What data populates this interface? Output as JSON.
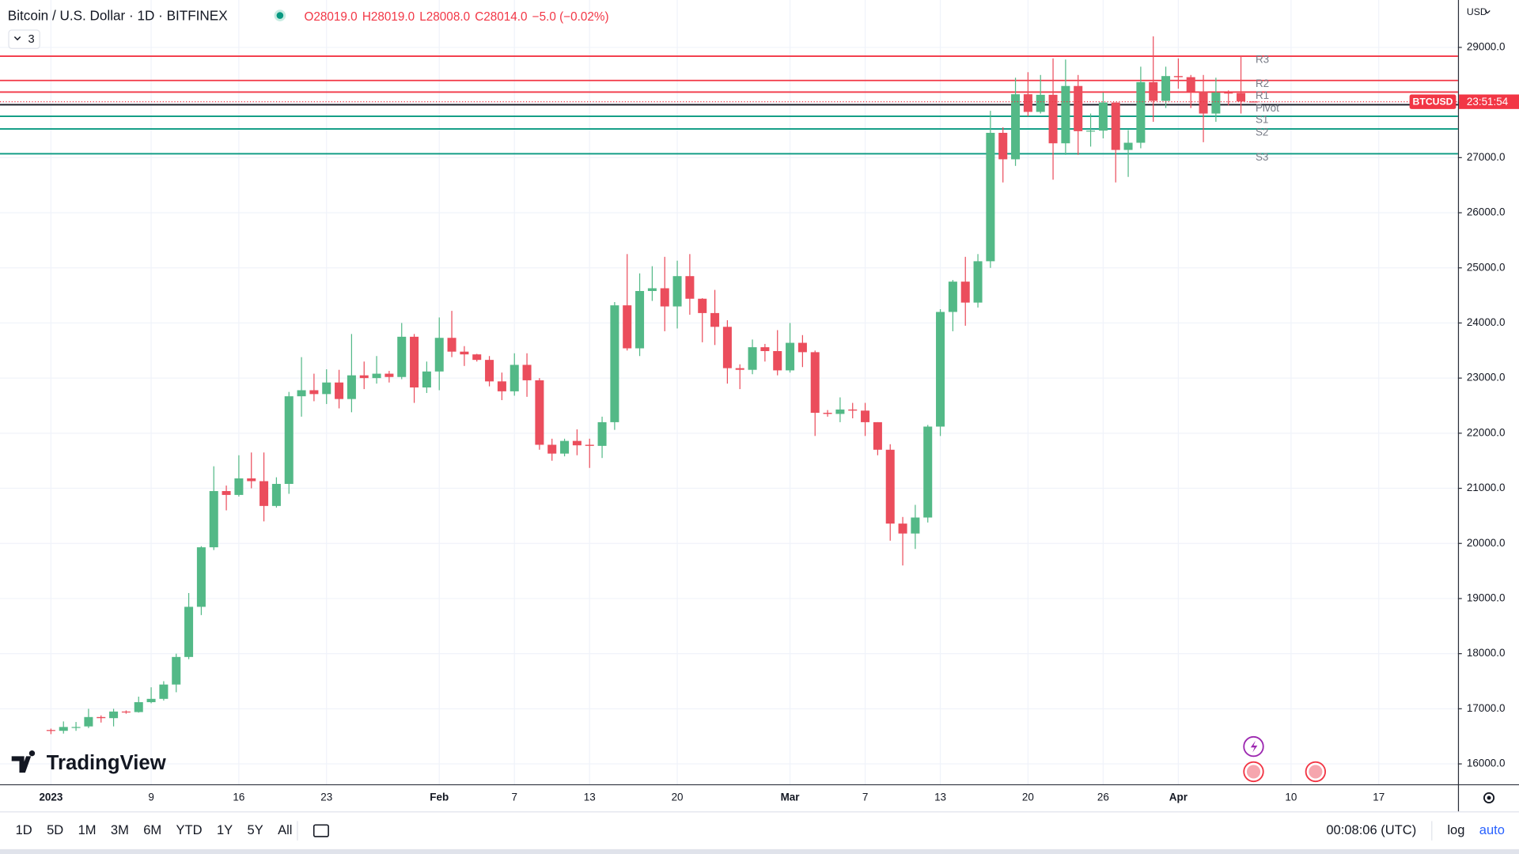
{
  "header": {
    "title": "Bitcoin / U.S. Dollar · 1D · BITFINEX",
    "ohlc": [
      "O28019.0",
      "H28019.0",
      "L28008.0",
      "C28014.0",
      "−5.0 (−0.02%)"
    ],
    "indicators": "3"
  },
  "logo": "TradingView",
  "chart_data": {
    "type": "candlestick",
    "currency": "USD",
    "up_color": "#53b987",
    "down_color": "#eb4d5c",
    "x": [
      "2023-01-01",
      "2023-01-02",
      "2023-01-03",
      "2023-01-04",
      "2023-01-05",
      "2023-01-06",
      "2023-01-07",
      "2023-01-08",
      "2023-01-09",
      "2023-01-10",
      "2023-01-11",
      "2023-01-12",
      "2023-01-13",
      "2023-01-14",
      "2023-01-15",
      "2023-01-16",
      "2023-01-17",
      "2023-01-18",
      "2023-01-19",
      "2023-01-20",
      "2023-01-21",
      "2023-01-22",
      "2023-01-23",
      "2023-01-24",
      "2023-01-25",
      "2023-01-26",
      "2023-01-27",
      "2023-01-28",
      "2023-01-29",
      "2023-01-30",
      "2023-01-31",
      "2023-02-01",
      "2023-02-02",
      "2023-02-03",
      "2023-02-04",
      "2023-02-05",
      "2023-02-06",
      "2023-02-07",
      "2023-02-08",
      "2023-02-09",
      "2023-02-10",
      "2023-02-11",
      "2023-02-12",
      "2023-02-13",
      "2023-02-14",
      "2023-02-15",
      "2023-02-16",
      "2023-02-17",
      "2023-02-18",
      "2023-02-19",
      "2023-02-20",
      "2023-02-21",
      "2023-02-22",
      "2023-02-23",
      "2023-02-24",
      "2023-02-25",
      "2023-02-26",
      "2023-02-27",
      "2023-02-28",
      "2023-03-01",
      "2023-03-02",
      "2023-03-03",
      "2023-03-04",
      "2023-03-05",
      "2023-03-06",
      "2023-03-07",
      "2023-03-08",
      "2023-03-09",
      "2023-03-10",
      "2023-03-11",
      "2023-03-12",
      "2023-03-13",
      "2023-03-14",
      "2023-03-15",
      "2023-03-16",
      "2023-03-17",
      "2023-03-18",
      "2023-03-19",
      "2023-03-20",
      "2023-03-21",
      "2023-03-22",
      "2023-03-23",
      "2023-03-24",
      "2023-03-25",
      "2023-03-26",
      "2023-03-27",
      "2023-03-28",
      "2023-03-29",
      "2023-03-30",
      "2023-03-31",
      "2023-04-01",
      "2023-04-02",
      "2023-04-03",
      "2023-04-04",
      "2023-04-05",
      "2023-04-06",
      "2023-04-07"
    ],
    "open": [
      16615,
      16600,
      16670,
      16680,
      16850,
      16830,
      16950,
      16940,
      17120,
      17180,
      17440,
      17940,
      18850,
      19930,
      20950,
      20880,
      21180,
      21130,
      20680,
      21080,
      22670,
      22780,
      22710,
      22920,
      22620,
      23050,
      23000,
      23080,
      23020,
      23750,
      22830,
      23120,
      23730,
      23480,
      23430,
      23330,
      22940,
      22760,
      23240,
      22960,
      21790,
      21630,
      21860,
      21790,
      21770,
      22200,
      24320,
      23540,
      24580,
      24630,
      24300,
      24850,
      24440,
      24180,
      23930,
      23180,
      23150,
      23560,
      23490,
      23140,
      23640,
      23470,
      22370,
      22350,
      22430,
      22410,
      22200,
      21700,
      20360,
      20180,
      20470,
      22120,
      24200,
      24750,
      24370,
      25120,
      27450,
      26970,
      28150,
      27830,
      28140,
      27260,
      28300,
      27480,
      27490,
      28000,
      27140,
      27270,
      28370,
      28030,
      28480,
      28460,
      28200,
      27800,
      28180,
      28170,
      28019
    ],
    "high": [
      16640,
      16770,
      16760,
      17000,
      16880,
      17000,
      16970,
      17220,
      17390,
      17500,
      18000,
      19100,
      19950,
      21400,
      21050,
      21600,
      21650,
      21650,
      21200,
      22750,
      23380,
      23080,
      23160,
      23150,
      23800,
      23300,
      23400,
      23130,
      24000,
      23800,
      23300,
      24100,
      24220,
      23580,
      23440,
      23400,
      23100,
      23450,
      23450,
      23000,
      21900,
      21900,
      22070,
      21900,
      22300,
      24380,
      25250,
      24900,
      25030,
      25200,
      25130,
      25250,
      24450,
      24600,
      24050,
      23250,
      23700,
      23620,
      23870,
      24000,
      23780,
      23500,
      22420,
      22650,
      22550,
      22550,
      22200,
      21800,
      20480,
      20700,
      22150,
      24250,
      24780,
      25200,
      25250,
      27850,
      27550,
      28450,
      28550,
      28500,
      28800,
      28780,
      28500,
      27800,
      28180,
      28000,
      27500,
      28650,
      29200,
      28650,
      28800,
      28500,
      28500,
      28450,
      28220,
      28850,
      28019
    ],
    "low": [
      16540,
      16550,
      16600,
      16650,
      16750,
      16680,
      16910,
      16930,
      17100,
      17150,
      17300,
      17900,
      18700,
      19880,
      20600,
      20850,
      21000,
      20400,
      20650,
      20900,
      22300,
      22580,
      22530,
      22450,
      22380,
      22800,
      22900,
      22920,
      22980,
      22550,
      22730,
      22780,
      23380,
      23220,
      23300,
      22850,
      22600,
      22680,
      22660,
      21700,
      21500,
      21580,
      21600,
      21370,
      21550,
      22060,
      23500,
      23400,
      24400,
      23850,
      23900,
      24150,
      23650,
      23600,
      22900,
      22800,
      23070,
      23300,
      23050,
      23100,
      23200,
      21950,
      22300,
      22200,
      22270,
      21950,
      21600,
      20050,
      19600,
      19900,
      20380,
      21950,
      23850,
      23950,
      24280,
      25000,
      26550,
      26850,
      27750,
      27800,
      26600,
      27050,
      27050,
      27200,
      27350,
      26550,
      26650,
      27170,
      27650,
      27900,
      28250,
      27900,
      27280,
      27650,
      27950,
      27800,
      28008
    ],
    "close": [
      16600,
      16670,
      16670,
      16850,
      16830,
      16950,
      16940,
      17120,
      17180,
      17440,
      17940,
      18850,
      19930,
      20950,
      20880,
      21180,
      21130,
      20680,
      21080,
      22670,
      22780,
      22710,
      22920,
      22620,
      23050,
      23000,
      23080,
      23020,
      23750,
      22830,
      23120,
      23730,
      23480,
      23430,
      23330,
      22940,
      22760,
      23240,
      22960,
      21790,
      21630,
      21860,
      21780,
      21770,
      22200,
      24320,
      23540,
      24580,
      24630,
      24300,
      24850,
      24440,
      24180,
      23930,
      23180,
      23150,
      23560,
      23490,
      23140,
      23640,
      23470,
      22370,
      22350,
      22430,
      22410,
      22200,
      21700,
      20360,
      20180,
      20470,
      22120,
      24200,
      24750,
      24370,
      25120,
      27450,
      26970,
      28150,
      27830,
      28140,
      27260,
      28300,
      27480,
      27490,
      28000,
      27140,
      27270,
      28370,
      28030,
      28480,
      28460,
      28200,
      27800,
      28180,
      28170,
      28019,
      28014
    ],
    "xlim": [
      "2023-01-01",
      "2023-04-23"
    ],
    "xticks": [
      {
        "value": "2023-01-01",
        "label": "2023"
      },
      {
        "value": "2023-01-09",
        "label": "9"
      },
      {
        "value": "2023-01-16",
        "label": "16"
      },
      {
        "value": "2023-01-23",
        "label": "23"
      },
      {
        "value": "2023-02-01",
        "label": "Feb"
      },
      {
        "value": "2023-02-07",
        "label": "7"
      },
      {
        "value": "2023-02-13",
        "label": "13"
      },
      {
        "value": "2023-02-20",
        "label": "20"
      },
      {
        "value": "2023-03-01",
        "label": "Mar"
      },
      {
        "value": "2023-03-07",
        "label": "7"
      },
      {
        "value": "2023-03-13",
        "label": "13"
      },
      {
        "value": "2023-03-20",
        "label": "20"
      },
      {
        "value": "2023-03-26",
        "label": "26"
      },
      {
        "value": "2023-04-01",
        "label": "Apr"
      },
      {
        "value": "2023-04-10",
        "label": "10"
      },
      {
        "value": "2023-04-17",
        "label": "17"
      }
    ],
    "ylim": [
      15630,
      29860
    ],
    "yticks": [
      {
        "value": 16000,
        "label": "16000.0"
      },
      {
        "value": 17000,
        "label": "17000.0"
      },
      {
        "value": 18000,
        "label": "18000.0"
      },
      {
        "value": 19000,
        "label": "19000.0"
      },
      {
        "value": 20000,
        "label": "20000.0"
      },
      {
        "value": 21000,
        "label": "21000.0"
      },
      {
        "value": 22000,
        "label": "22000.0"
      },
      {
        "value": 23000,
        "label": "23000.0"
      },
      {
        "value": 24000,
        "label": "24000.0"
      },
      {
        "value": 25000,
        "label": "25000.0"
      },
      {
        "value": 26000,
        "label": "26000.0"
      },
      {
        "value": 27000,
        "label": "27000.0"
      },
      {
        "value": 28000,
        "label": "28000.0"
      },
      {
        "value": 29000,
        "label": "29000.0"
      }
    ],
    "grid": true,
    "pivots": [
      {
        "name": "R3",
        "value": 28840,
        "color": "#f23645"
      },
      {
        "name": "R2",
        "value": 28400,
        "color": "#f23645"
      },
      {
        "name": "R1",
        "value": 28190,
        "color": "#f23645"
      },
      {
        "name": "Pivot",
        "value": 27960,
        "color": "#131722"
      },
      {
        "name": "S1",
        "value": 27750,
        "color": "#089981"
      },
      {
        "name": "S2",
        "value": 27520,
        "color": "#089981"
      },
      {
        "name": "S3",
        "value": 27070,
        "color": "#089981"
      }
    ],
    "price_tag": {
      "symbol": "BTCUSD",
      "countdown": "23:51:54",
      "color": "#f23645"
    }
  },
  "toolbar": {
    "ranges": [
      "1D",
      "5D",
      "1M",
      "3M",
      "6M",
      "YTD",
      "1Y",
      "5Y",
      "All"
    ],
    "clock": "00:08:06 (UTC)",
    "log": "log",
    "auto": "auto"
  }
}
